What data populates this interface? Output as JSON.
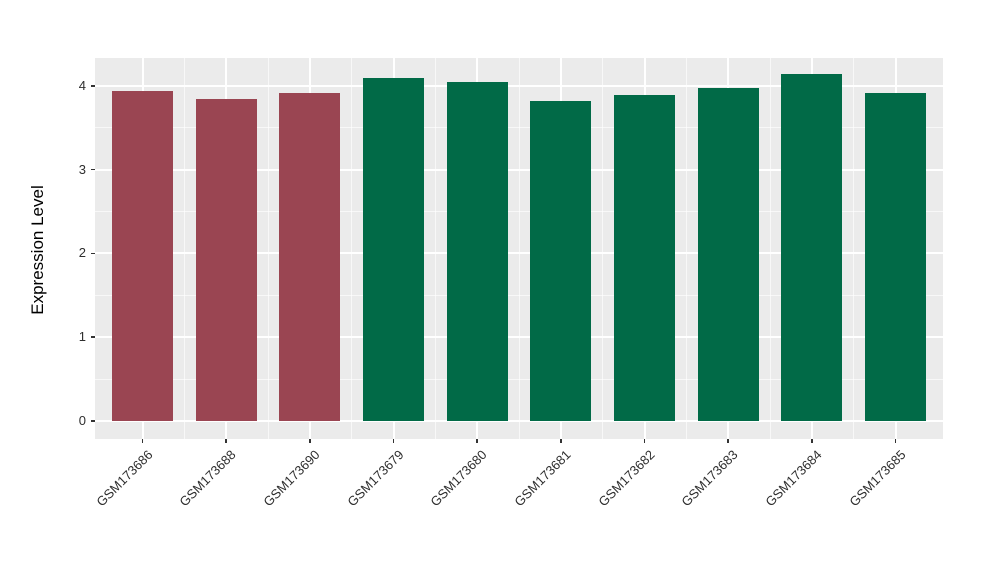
{
  "chart_data": {
    "type": "bar",
    "title": "",
    "xlabel": "",
    "ylabel": "Expression Level",
    "categories": [
      "GSM173686",
      "GSM173688",
      "GSM173690",
      "GSM173679",
      "GSM173680",
      "GSM173681",
      "GSM173682",
      "GSM173683",
      "GSM173684",
      "GSM173685"
    ],
    "values": [
      3.94,
      3.84,
      3.91,
      4.09,
      4.04,
      3.82,
      3.89,
      3.97,
      4.14,
      3.92
    ],
    "bar_colors": [
      "#9A4552",
      "#9A4552",
      "#9A4552",
      "#016A47",
      "#016A47",
      "#016A47",
      "#016A47",
      "#016A47",
      "#016A47",
      "#016A47"
    ],
    "group_colors": {
      "red_group": "#9A4552",
      "green_group": "#016A47"
    },
    "yticks": [
      0,
      1,
      2,
      3,
      4
    ],
    "ytick_labels": [
      "0",
      "1",
      "2",
      "3",
      "4"
    ],
    "ylim": [
      -0.215,
      4.332
    ],
    "grid": true,
    "legend": "none",
    "panel_background": "#EBEBEB",
    "grid_major_color": "#FFFFFF",
    "axis_text_color": "#2e2e2e",
    "tick_mark_color": "#333333"
  }
}
